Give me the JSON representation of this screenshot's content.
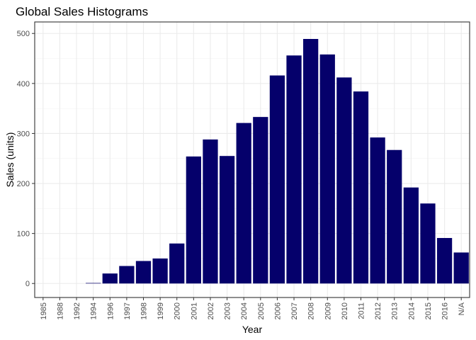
{
  "chart_data": {
    "type": "bar",
    "title": "Global Sales Histograms",
    "xlabel": "Year",
    "ylabel": "Sales (units)",
    "categories": [
      "1985",
      "1988",
      "1992",
      "1994",
      "1996",
      "1997",
      "1998",
      "1999",
      "2000",
      "2001",
      "2002",
      "2003",
      "2004",
      "2005",
      "2006",
      "2007",
      "2008",
      "2009",
      "2010",
      "2011",
      "2012",
      "2013",
      "2014",
      "2015",
      "2016",
      "N/A"
    ],
    "values": [
      0,
      0,
      0,
      1,
      20,
      35,
      45,
      50,
      80,
      254,
      288,
      255,
      321,
      333,
      416,
      456,
      489,
      458,
      412,
      384,
      292,
      267,
      192,
      160,
      91,
      62
    ],
    "ylim": [
      -28,
      523
    ],
    "yticks": [
      0,
      100,
      200,
      300,
      400,
      500
    ],
    "grid": true,
    "bar_color": "#05006b",
    "legend": "none"
  }
}
